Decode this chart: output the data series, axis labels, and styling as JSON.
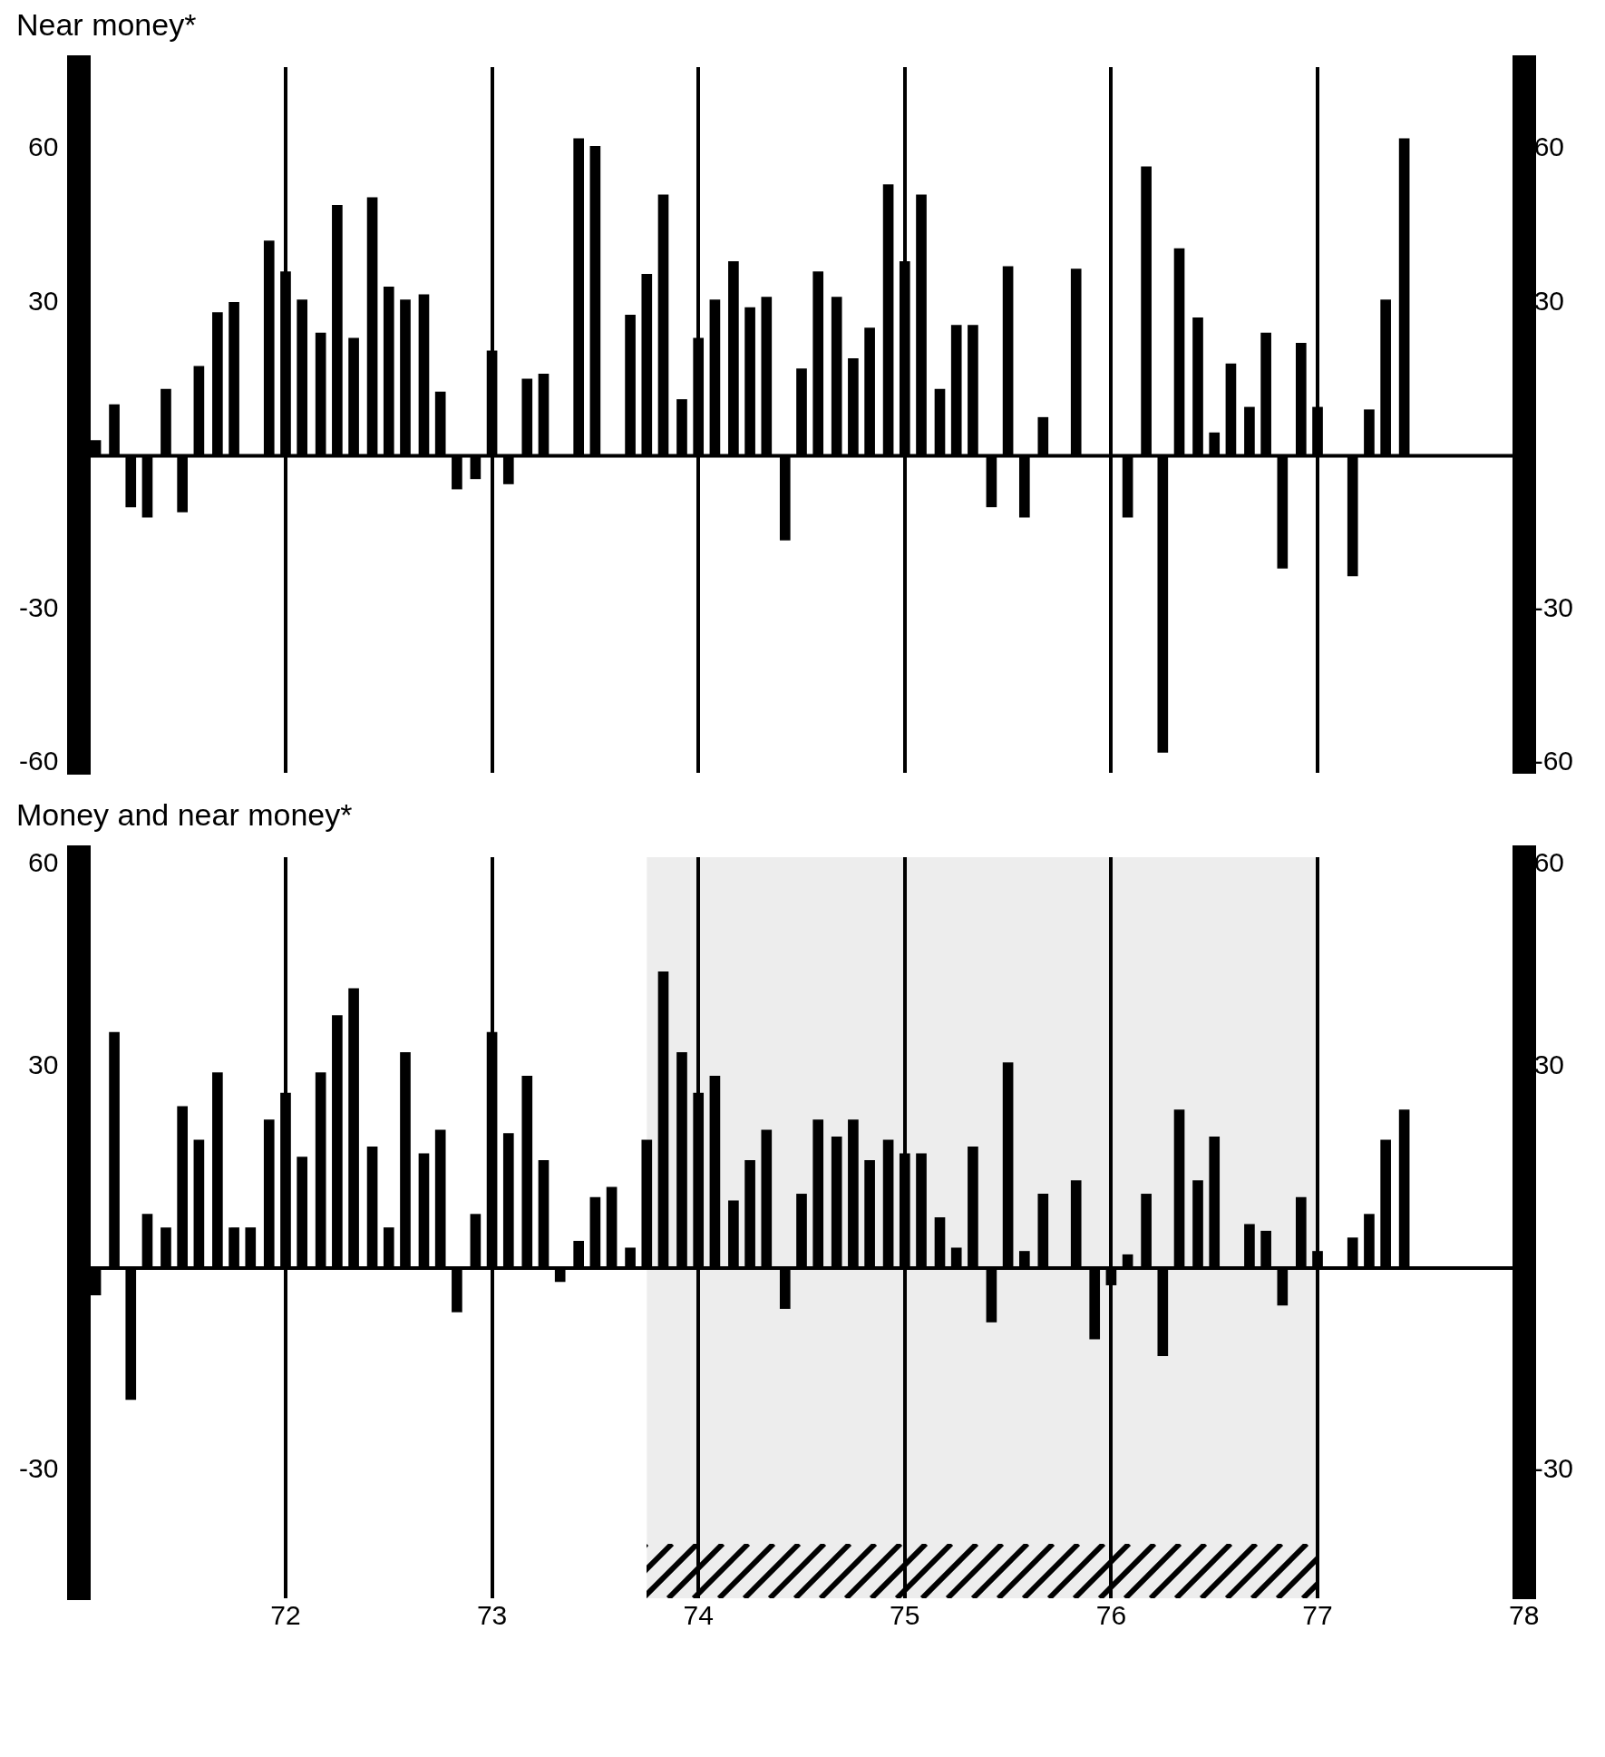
{
  "chart_data": [
    {
      "type": "bar",
      "title": "Near money*",
      "xlim": [
        71,
        78
      ],
      "xticks": [
        72,
        73,
        74,
        75,
        76,
        77,
        78
      ],
      "ylim": [
        -62,
        76
      ],
      "yticks": [
        -60,
        -30,
        30,
        60
      ],
      "y2lim": [
        -62,
        76
      ],
      "y2ticks": [
        -60,
        -30,
        30,
        60
      ],
      "grid": "x",
      "legend": false,
      "tick_labels": "y",
      "series": [
        {
          "color": "#000000",
          "x": [
            71.08,
            71.17,
            71.25,
            71.33,
            71.42,
            71.5,
            71.58,
            71.67,
            71.75,
            71.83,
            71.92,
            72,
            72.08,
            72.17,
            72.25,
            72.33,
            72.42,
            72.5,
            72.58,
            72.67,
            72.75,
            72.83,
            72.92,
            73,
            73.08,
            73.17,
            73.25,
            73.33,
            73.42,
            73.5,
            73.58,
            73.67,
            73.75,
            73.83,
            73.92,
            74,
            74.08,
            74.17,
            74.25,
            74.33,
            74.42,
            74.5,
            74.58,
            74.67,
            74.75,
            74.83,
            74.92,
            75,
            75.08,
            75.17,
            75.25,
            75.33,
            75.42,
            75.5,
            75.58,
            75.67,
            75.75,
            75.83,
            75.92,
            76,
            76.08,
            76.17,
            76.25,
            76.33,
            76.42,
            76.5,
            76.58,
            76.67,
            76.75,
            76.83,
            76.92,
            77,
            77.08,
            77.17,
            77.25,
            77.33,
            77.42
          ],
          "values": [
            3,
            10,
            -10,
            -12,
            13,
            -11,
            17.5,
            28,
            30,
            0,
            42,
            36,
            30.5,
            24,
            49,
            23,
            50.5,
            33,
            30.5,
            31.5,
            12.5,
            -6.5,
            -4.5,
            20.5,
            -5.5,
            15,
            16,
            0,
            62,
            60.5,
            0,
            27.5,
            35.5,
            51,
            11,
            23,
            30.5,
            38,
            29,
            31,
            -16.5,
            17,
            36,
            31,
            19,
            25,
            53,
            38,
            51,
            13,
            25.5,
            25.5,
            -10,
            37,
            -12,
            7.5,
            0,
            36.5,
            0,
            0,
            -12,
            56.5,
            -58,
            40.5,
            27,
            4.5,
            18,
            9.5,
            24,
            -22,
            22,
            9.5,
            0,
            -23.5,
            9,
            30.5,
            62
          ]
        }
      ]
    },
    {
      "type": "bar",
      "title": "Money and near money*",
      "xlim": [
        71,
        78
      ],
      "xticks": [
        72,
        73,
        74,
        75,
        76,
        77,
        78
      ],
      "ylim": [
        -49,
        61
      ],
      "yticks": [
        -30,
        30,
        60
      ],
      "y2lim": [
        -49,
        61
      ],
      "y2ticks": [
        -30,
        30,
        60
      ],
      "grid": "x",
      "legend": false,
      "bands": [
        {
          "axis": "x",
          "from": 73.75,
          "to": 77,
          "color": "#000000"
        }
      ],
      "series": [
        {
          "color": "#000000",
          "x": [
            71.08,
            71.17,
            71.25,
            71.33,
            71.42,
            71.5,
            71.58,
            71.67,
            71.75,
            71.83,
            71.92,
            72,
            72.08,
            72.17,
            72.25,
            72.33,
            72.42,
            72.5,
            72.58,
            72.67,
            72.75,
            72.83,
            72.92,
            73,
            73.08,
            73.17,
            73.25,
            73.33,
            73.42,
            73.5,
            73.58,
            73.67,
            73.75,
            73.83,
            73.92,
            74,
            74.08,
            74.17,
            74.25,
            74.33,
            74.42,
            74.5,
            74.58,
            74.67,
            74.75,
            74.83,
            74.92,
            75,
            75.08,
            75.17,
            75.25,
            75.33,
            75.42,
            75.5,
            75.58,
            75.67,
            75.75,
            75.83,
            75.92,
            76,
            76.08,
            76.17,
            76.25,
            76.33,
            76.42,
            76.5,
            76.58,
            76.67,
            76.75,
            76.83,
            76.92,
            77,
            77.08,
            77.17,
            77.25,
            77.33,
            77.42
          ],
          "values": [
            -4,
            35,
            -19.5,
            8,
            6,
            24,
            19,
            29,
            6,
            6,
            22,
            26,
            16.5,
            29,
            37.5,
            41.5,
            18,
            6,
            32,
            17,
            20.5,
            -6.5,
            8,
            35,
            20,
            28.5,
            16,
            -2,
            4,
            10.5,
            12,
            3,
            19,
            44,
            32,
            26,
            28.5,
            10,
            16,
            20.5,
            -6,
            11,
            22,
            19.5,
            22,
            16,
            19,
            17,
            17,
            7.5,
            3,
            18,
            -8,
            30.5,
            2.5,
            11,
            0,
            13,
            -10.5,
            -2.5,
            2,
            11,
            -13,
            23.5,
            13,
            19.5,
            0,
            6.5,
            5.5,
            -5.5,
            10.5,
            2.5,
            0,
            4.5,
            8,
            19,
            23.5
          ]
        }
      ]
    }
  ]
}
